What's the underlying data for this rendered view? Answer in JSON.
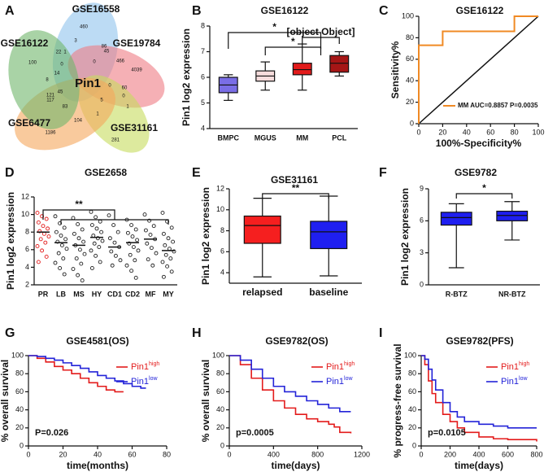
{
  "chart_data": [
    {
      "type": "venn",
      "panel": "A",
      "center_label": "Pin1",
      "sets": [
        {
          "name": "GSE16558",
          "color": "#8fc3ec"
        },
        {
          "name": "GSE19784",
          "color": "#ee7b84"
        },
        {
          "name": "GSE31161",
          "color": "#c6dc5e"
        },
        {
          "name": "GSE6477",
          "color": "#f5a65b"
        },
        {
          "name": "GSE16122",
          "color": "#6fb66a"
        }
      ],
      "counts": [
        460,
        3,
        86,
        45,
        466,
        4039,
        100,
        22,
        1,
        0,
        0,
        14,
        8,
        121,
        117,
        45,
        0,
        60,
        0,
        5,
        83,
        1,
        104,
        1,
        1186,
        281
      ]
    },
    {
      "type": "box",
      "panel": "B",
      "title": "GSE16122",
      "ylabel": "Pin1 log2 expression",
      "categories": [
        "BMPC",
        "MGUS",
        "MM",
        "PCL"
      ],
      "colors": [
        "#7a6ee6",
        "#f6dcdc",
        "#e31b1b",
        "#a51616"
      ],
      "boxes": [
        {
          "min": 5.1,
          "q1": 5.4,
          "median": 5.7,
          "q3": 6.0,
          "max": 6.1
        },
        {
          "min": 5.5,
          "q1": 5.85,
          "median": 6.05,
          "q3": 6.25,
          "max": 6.6
        },
        {
          "min": 5.5,
          "q1": 6.1,
          "median": 6.3,
          "q3": 6.55,
          "max": 7.3
        },
        {
          "min": 6.05,
          "q1": 6.2,
          "median": 6.55,
          "q3": 6.85,
          "max": 7.0
        }
      ],
      "ylim": [
        4,
        8
      ],
      "yticks": [
        4,
        5,
        6,
        7,
        8
      ],
      "annotations": [
        "*",
        "*"
      ]
    },
    {
      "type": "line",
      "panel": "C",
      "title": "GSE16122",
      "xlabel": "100%-Specificity%",
      "ylabel": "Sensitivity%",
      "x": [
        0,
        0,
        20,
        20,
        80,
        80,
        100
      ],
      "series": [
        {
          "name": "MM AUC=0.8857 P=0.0035",
          "color": "#f08a24",
          "values": [
            0,
            73,
            73,
            86,
            86,
            100,
            100
          ]
        }
      ],
      "xlim": [
        0,
        100
      ],
      "ylim": [
        0,
        100
      ],
      "xticks": [
        0,
        20,
        40,
        60,
        80,
        100
      ],
      "yticks": [
        0,
        20,
        40,
        60,
        80,
        100
      ],
      "reference_diagonal": true
    },
    {
      "type": "dot",
      "panel": "D",
      "title": "GSE2658",
      "ylabel": "Pin1 log2 expression",
      "categories": [
        "PR",
        "LB",
        "MS",
        "HY",
        "CD1",
        "CD2",
        "MF",
        "MY"
      ],
      "colors": [
        "#e31b1b",
        "#222222",
        "#222222",
        "#222222",
        "#222222",
        "#222222",
        "#222222",
        "#222222"
      ],
      "values": [
        [
          10.2,
          9.8,
          9.5,
          9.1,
          8.7,
          8.4,
          8.1,
          7.8,
          7.5,
          7.2,
          6.8,
          6.4,
          5.9,
          5.2,
          4.6
        ],
        [
          9.8,
          9.0,
          8.5,
          8.0,
          7.6,
          7.2,
          6.9,
          6.5,
          6.1,
          5.6,
          5.0,
          4.5,
          3.9,
          3.2
        ],
        [
          9.6,
          8.9,
          8.3,
          7.8,
          7.3,
          6.9,
          6.5,
          6.0,
          5.5,
          5.0,
          4.4,
          3.8,
          3.1,
          2.5
        ],
        [
          10.3,
          9.7,
          9.2,
          8.8,
          8.4,
          8.0,
          7.6,
          7.3,
          7.0,
          6.7,
          6.3,
          5.9,
          5.3,
          4.6,
          3.9
        ],
        [
          9.9,
          8.8,
          8.0,
          7.3,
          6.8,
          6.3,
          5.8,
          5.3,
          4.8,
          4.2
        ],
        [
          9.4,
          8.8,
          8.3,
          7.9,
          7.5,
          7.1,
          6.7,
          6.3,
          5.9,
          5.4,
          4.8,
          4.2,
          3.6,
          2.8
        ],
        [
          10.0,
          9.3,
          8.7,
          8.2,
          7.7,
          7.2,
          6.7,
          6.2,
          5.6,
          4.9,
          4.2
        ],
        [
          10.2,
          9.2,
          8.5,
          7.8,
          7.3,
          6.9,
          6.5,
          6.1,
          5.8,
          5.4,
          5.0,
          4.6,
          4.1,
          3.5,
          2.9
        ]
      ],
      "means": [
        8.0,
        6.8,
        6.5,
        7.4,
        6.3,
        6.8,
        7.2,
        5.9
      ],
      "ylim": [
        2,
        12
      ],
      "yticks": [
        2,
        4,
        6,
        8,
        10,
        12
      ],
      "annotations": [
        "**"
      ]
    },
    {
      "type": "box",
      "panel": "E",
      "title": "GSE31161",
      "ylabel": "Pin1 log2 expression",
      "categories": [
        "relapsed",
        "baseline"
      ],
      "colors": [
        "#f51f1f",
        "#1f1ff0"
      ],
      "boxes": [
        {
          "min": 3.6,
          "q1": 6.8,
          "median": 8.5,
          "q3": 9.4,
          "max": 11.1
        },
        {
          "min": 3.7,
          "q1": 6.3,
          "median": 7.9,
          "q3": 8.9,
          "max": 11.3
        }
      ],
      "ylim": [
        3,
        12
      ],
      "yticks": [
        4,
        6,
        8,
        10,
        12
      ],
      "annotations": [
        "**"
      ]
    },
    {
      "type": "box",
      "panel": "F",
      "title": "GSE9782",
      "ylabel": "Pin1 log2 expression",
      "categories": [
        "R-BTZ",
        "NR-BTZ"
      ],
      "colors": [
        "#1f1ff0",
        "#1f1ff0"
      ],
      "boxes": [
        {
          "min": 1.6,
          "q1": 5.6,
          "median": 6.3,
          "q3": 6.8,
          "max": 7.6
        },
        {
          "min": 4.2,
          "q1": 6.0,
          "median": 6.5,
          "q3": 6.9,
          "max": 7.8
        }
      ],
      "ylim": [
        0,
        9
      ],
      "yticks": [
        0,
        3,
        6,
        9
      ],
      "annotations": [
        "*"
      ]
    },
    {
      "type": "survival",
      "panel": "G",
      "title": "GSE4581(OS)",
      "xlabel": "time(months)",
      "ylabel": "% overall survival",
      "series": [
        {
          "name": "Pin1",
          "superscript": "high",
          "color": "#e31b1b",
          "x": [
            0,
            5,
            10,
            15,
            20,
            25,
            30,
            35,
            40,
            45,
            50,
            55
          ],
          "values": [
            100,
            97,
            93,
            88,
            84,
            80,
            75,
            70,
            66,
            62,
            60,
            60
          ]
        },
        {
          "name": "Pin1",
          "superscript": "low",
          "color": "#2323d8",
          "x": [
            0,
            5,
            10,
            15,
            20,
            25,
            30,
            35,
            40,
            45,
            50,
            55,
            60,
            65,
            68
          ],
          "values": [
            100,
            99,
            97,
            95,
            92,
            89,
            86,
            82,
            78,
            75,
            72,
            69,
            66,
            64,
            64
          ]
        }
      ],
      "xlim": [
        0,
        80
      ],
      "ylim": [
        0,
        100
      ],
      "xticks": [
        0,
        20,
        40,
        60,
        80
      ],
      "yticks": [
        0,
        20,
        40,
        60,
        80,
        100
      ],
      "annotations": [
        "P=0.026"
      ]
    },
    {
      "type": "survival",
      "panel": "H",
      "title": "GSE9782(OS)",
      "xlabel": "time(days)",
      "ylabel": "% overall survival",
      "series": [
        {
          "name": "Pin1",
          "superscript": "high",
          "color": "#e31b1b",
          "x": [
            0,
            100,
            200,
            300,
            400,
            500,
            600,
            700,
            800,
            900,
            950,
            1000,
            1100
          ],
          "values": [
            100,
            90,
            75,
            62,
            50,
            42,
            35,
            30,
            27,
            24,
            21,
            15,
            14
          ]
        },
        {
          "name": "Pin1",
          "superscript": "low",
          "color": "#2323d8",
          "x": [
            0,
            100,
            200,
            300,
            400,
            500,
            600,
            700,
            800,
            900,
            1000,
            1100
          ],
          "values": [
            100,
            95,
            85,
            75,
            66,
            60,
            55,
            50,
            46,
            42,
            38,
            38
          ]
        }
      ],
      "xlim": [
        0,
        1200
      ],
      "ylim": [
        0,
        100
      ],
      "xticks": [
        0,
        400,
        800,
        1200
      ],
      "yticks": [
        0,
        20,
        40,
        60,
        80,
        100
      ],
      "annotations": [
        "p=0.0005"
      ]
    },
    {
      "type": "survival",
      "panel": "I",
      "title": "GSE9782(PFS)",
      "xlabel": "time(days)",
      "ylabel": "% progress-free survival",
      "series": [
        {
          "name": "Pin1",
          "superscript": "high",
          "color": "#e31b1b",
          "x": [
            0,
            25,
            50,
            75,
            100,
            150,
            200,
            250,
            300,
            400,
            500,
            600,
            800
          ],
          "values": [
            100,
            90,
            72,
            58,
            48,
            35,
            27,
            20,
            15,
            10,
            8,
            7,
            5
          ]
        },
        {
          "name": "Pin1",
          "superscript": "low",
          "color": "#2323d8",
          "x": [
            0,
            25,
            50,
            75,
            100,
            150,
            200,
            250,
            300,
            400,
            500,
            600,
            800
          ],
          "values": [
            100,
            96,
            85,
            73,
            62,
            48,
            38,
            32,
            27,
            24,
            22,
            20,
            20
          ]
        }
      ],
      "xlim": [
        0,
        800
      ],
      "ylim": [
        0,
        100
      ],
      "xticks": [
        0,
        200,
        400,
        600,
        800
      ],
      "yticks": [
        0,
        20,
        40,
        60,
        80,
        100
      ],
      "annotations": [
        "p=0.0105"
      ]
    }
  ]
}
